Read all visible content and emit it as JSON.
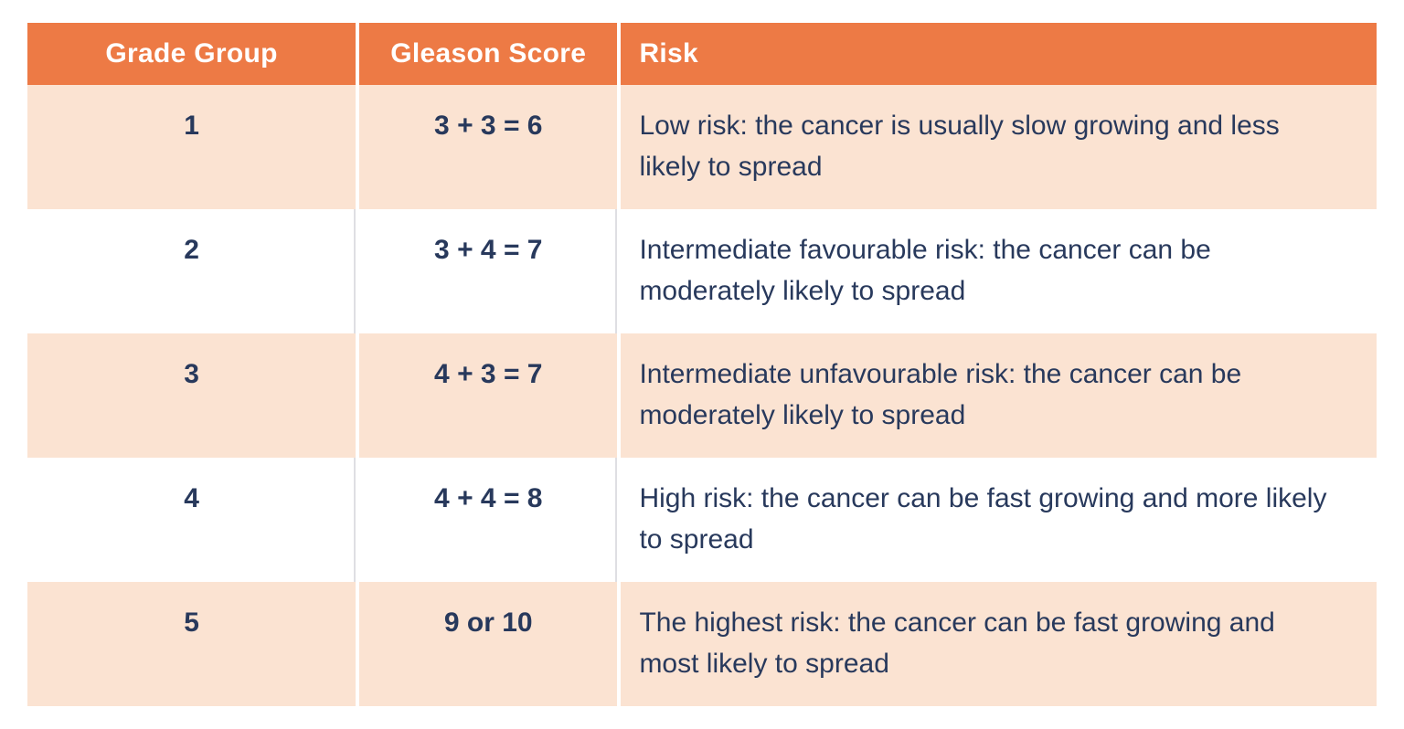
{
  "table": {
    "columns": [
      {
        "label": "Grade Group"
      },
      {
        "label": "Gleason Score"
      },
      {
        "label": "Risk"
      }
    ],
    "rows": [
      {
        "grade_group": "1",
        "gleason_score": "3 + 3 = 6",
        "risk": "Low risk: the cancer is usually slow growing and less likely to spread"
      },
      {
        "grade_group": "2",
        "gleason_score": "3 + 4 = 7",
        "risk": "Intermediate favourable risk: the cancer can be moderately likely to spread"
      },
      {
        "grade_group": "3",
        "gleason_score": "4 + 3 = 7",
        "risk": "Intermediate unfavourable risk: the cancer can be moderately likely to spread"
      },
      {
        "grade_group": "4",
        "gleason_score": "4 + 4 = 8",
        "risk": "High risk: the cancer can be fast growing and more likely to spread"
      },
      {
        "grade_group": "5",
        "gleason_score": "9 or 10",
        "risk": "The highest risk: the cancer can be fast growing and most likely to spread"
      }
    ],
    "colors": {
      "header_bg": "#ED7A45",
      "header_text": "#FFFFFF",
      "row_alt_bg": "#FBE3D2",
      "row_bg": "#FFFFFF",
      "text": "#28395C"
    }
  }
}
